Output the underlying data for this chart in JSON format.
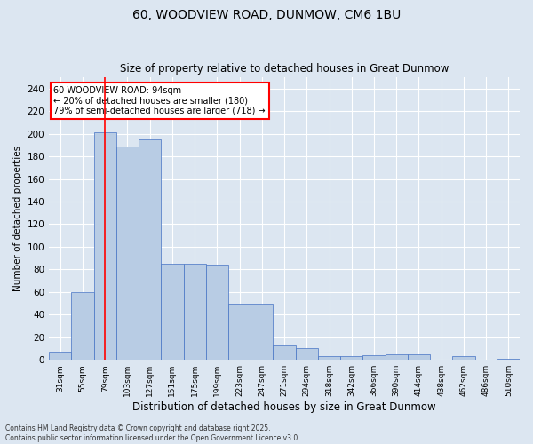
{
  "title_line1": "60, WOODVIEW ROAD, DUNMOW, CM6 1BU",
  "title_line2": "Size of property relative to detached houses in Great Dunmow",
  "xlabel": "Distribution of detached houses by size in Great Dunmow",
  "ylabel": "Number of detached properties",
  "bar_labels": [
    "31sqm",
    "55sqm",
    "79sqm",
    "103sqm",
    "127sqm",
    "151sqm",
    "175sqm",
    "199sqm",
    "223sqm",
    "247sqm",
    "271sqm",
    "294sqm",
    "318sqm",
    "342sqm",
    "366sqm",
    "390sqm",
    "414sqm",
    "438sqm",
    "462sqm",
    "486sqm",
    "510sqm"
  ],
  "values": [
    7,
    60,
    201,
    189,
    195,
    85,
    85,
    84,
    50,
    50,
    13,
    10,
    3,
    3,
    4,
    5,
    5,
    0,
    3,
    0,
    1
  ],
  "bar_color": "#b8cce4",
  "bar_edge_color": "#4472c4",
  "bg_color": "#dce6f1",
  "grid_color": "#ffffff",
  "vline_x": 2.0,
  "vline_color": "red",
  "annotation_text": "60 WOODVIEW ROAD: 94sqm\n← 20% of detached houses are smaller (180)\n79% of semi-detached houses are larger (718) →",
  "annotation_box_color": "white",
  "annotation_box_edge": "red",
  "ylim": [
    0,
    250
  ],
  "yticks": [
    0,
    20,
    40,
    60,
    80,
    100,
    120,
    140,
    160,
    180,
    200,
    220,
    240
  ],
  "footnote": "Contains HM Land Registry data © Crown copyright and database right 2025.\nContains public sector information licensed under the Open Government Licence v3.0."
}
